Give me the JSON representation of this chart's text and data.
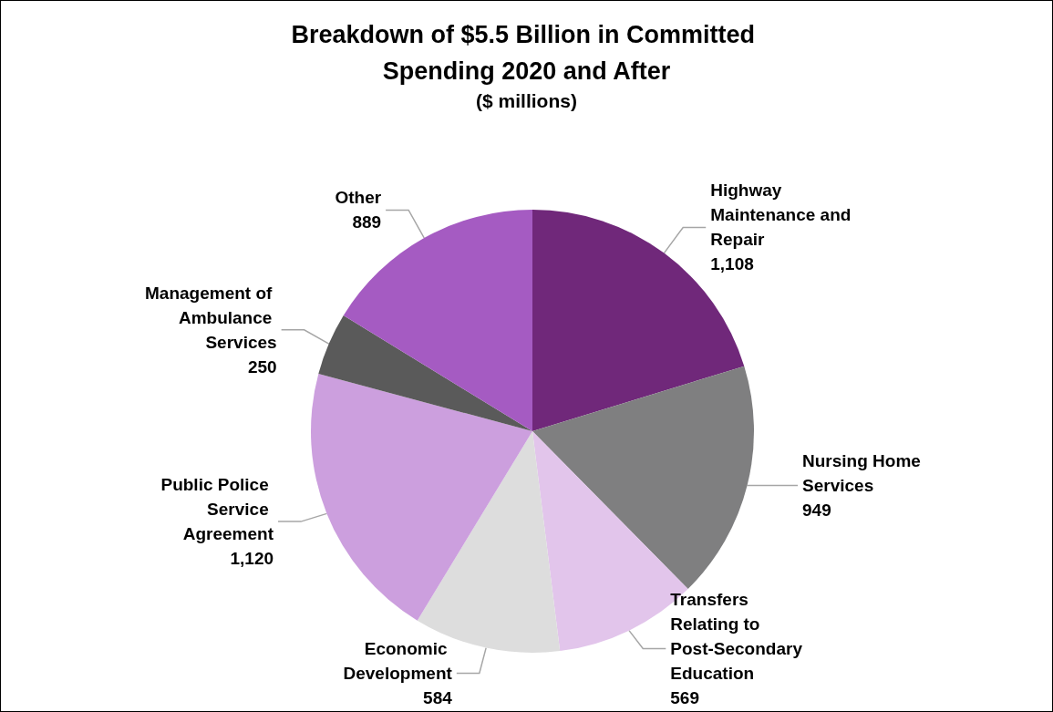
{
  "chart_data": {
    "type": "pie",
    "title": "Breakdown of $5.5 Billion in Committed Spending 2020 and After",
    "subtitle": "($ millions)",
    "categories": [
      "Highway Maintenance and Repair",
      "Nursing Home Services",
      "Transfers Relating to Post-Secondary Education",
      "Economic Development",
      "Public Police Service Agreement",
      "Management of Ambulance Services",
      "Other"
    ],
    "values": [
      1108,
      949,
      569,
      584,
      1120,
      250,
      889
    ],
    "colors": [
      "#70287a",
      "#7f7f80",
      "#e2c5eb",
      "#dddddd",
      "#cc9fde",
      "#5a5a5a",
      "#a55bc2"
    ],
    "value_labels": [
      "1,108",
      "949",
      "569",
      "584",
      "1,120",
      "250",
      "889"
    ],
    "legend": false
  }
}
